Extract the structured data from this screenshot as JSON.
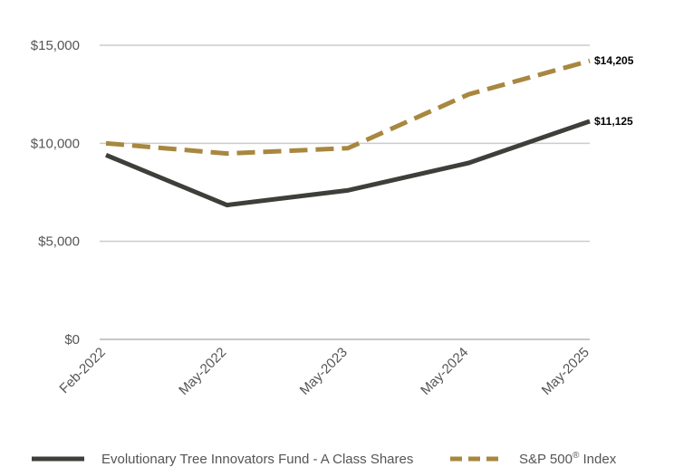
{
  "chart_data": {
    "type": "line",
    "categories": [
      "Feb-2022",
      "May-2022",
      "May-2023",
      "May-2024",
      "May-2025"
    ],
    "ylim": [
      0,
      15000
    ],
    "yticks": [
      0,
      5000,
      10000,
      15000
    ],
    "ytick_labels": [
      "$0",
      "$5,000",
      "$10,000",
      "$15,000"
    ],
    "grid": true,
    "legend_position": "bottom",
    "series": [
      {
        "name": "Evolutionary Tree Innovators Fund - A Class Shares",
        "values": [
          9400,
          6850,
          7600,
          9000,
          11125
        ],
        "color": "#3c3f3a",
        "style": "solid",
        "end_label": "$11,125"
      },
      {
        "name": "S&P 500",
        "name_sup": "®",
        "name_suffix": " Index",
        "values": [
          10000,
          9480,
          9750,
          12500,
          14205
        ],
        "color": "#a8873f",
        "style": "dashed",
        "end_label": "$14,205"
      }
    ]
  }
}
